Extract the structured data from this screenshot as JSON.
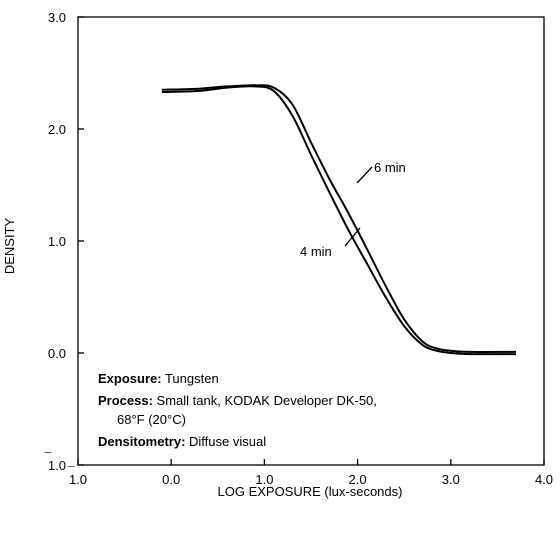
{
  "chart_data": {
    "type": "line",
    "title": "",
    "xlabel": "LOG EXPOSURE (lux-seconds)",
    "ylabel": "DENSITY",
    "xlim": [
      -1.0,
      4.0
    ],
    "ylim": [
      -1.0,
      3.0
    ],
    "x_ticks": [
      {
        "value": -1.0,
        "label": "1.0",
        "bar": "̅"
      },
      {
        "value": 0.0,
        "label": "0.0"
      },
      {
        "value": 1.0,
        "label": "1.0"
      },
      {
        "value": 2.0,
        "label": "2.0"
      },
      {
        "value": 3.0,
        "label": "3.0"
      },
      {
        "value": 4.0,
        "label": "4.0"
      }
    ],
    "y_ticks": [
      {
        "value": 3.0,
        "label": "3.0"
      },
      {
        "value": 2.0,
        "label": "2.0"
      },
      {
        "value": 1.0,
        "label": "1.0"
      },
      {
        "value": 0.0,
        "label": "0.0"
      },
      {
        "value": -1.0,
        "label": "1.0",
        "bar": "̅"
      }
    ],
    "grid": false,
    "series": [
      {
        "name": "6 min",
        "x": [
          -0.1,
          0.3,
          0.6,
          0.9,
          1.1,
          1.3,
          1.5,
          1.7,
          1.9,
          2.1,
          2.3,
          2.5,
          2.7,
          2.85,
          3.0,
          3.2,
          3.7
        ],
        "y": [
          2.35,
          2.36,
          2.38,
          2.39,
          2.37,
          2.22,
          1.88,
          1.55,
          1.25,
          0.93,
          0.6,
          0.3,
          0.1,
          0.04,
          0.02,
          0.01,
          0.01
        ]
      },
      {
        "name": "4 min",
        "x": [
          -0.1,
          0.3,
          0.6,
          0.9,
          1.1,
          1.3,
          1.5,
          1.7,
          1.9,
          2.1,
          2.3,
          2.5,
          2.7,
          2.85,
          3.0,
          3.2,
          3.7
        ],
        "y": [
          2.33,
          2.34,
          2.37,
          2.38,
          2.34,
          2.12,
          1.77,
          1.43,
          1.1,
          0.8,
          0.5,
          0.24,
          0.07,
          0.02,
          0.0,
          -0.01,
          -0.01
        ]
      }
    ],
    "annotations": {
      "six_min": "6 min",
      "four_min": "4 min"
    },
    "notes": [
      {
        "label": "Exposure:",
        "text": " Tungsten"
      },
      {
        "label": "Process:",
        "text": " Small tank, KODAK Developer DK-50,"
      },
      {
        "label": "",
        "text": "68°F (20°C)"
      },
      {
        "label": "Densitometry:",
        "text": " Diffuse visual"
      }
    ]
  }
}
